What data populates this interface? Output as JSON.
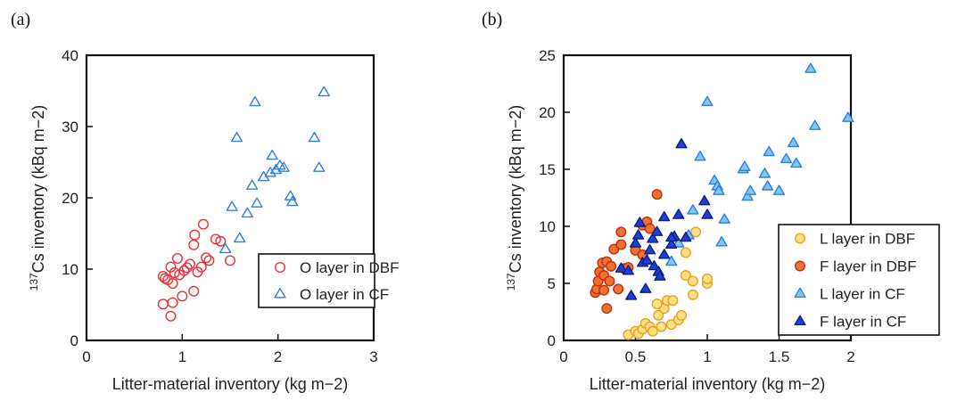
{
  "chart_data": [
    {
      "panel": "(a)",
      "type": "scatter",
      "title": "",
      "xlabel": "Litter-material inventory (kg m−2)",
      "ylabel_sup": "137",
      "ylabel": "Cs inventory (kBq m−2)",
      "xlim": [
        0,
        3
      ],
      "ylim": [
        0,
        40
      ],
      "xticks": [
        0,
        1,
        2,
        3
      ],
      "yticks": [
        0,
        10,
        20,
        30,
        40
      ],
      "grid": false,
      "legend_position": "bottom-right",
      "series": [
        {
          "name": "O layer in DBF",
          "marker": "circle",
          "fill": "none",
          "stroke": "#e8313a",
          "points": [
            [
              0.8,
              9
            ],
            [
              0.82,
              8.7
            ],
            [
              0.85,
              8.5
            ],
            [
              0.88,
              10.3
            ],
            [
              0.9,
              8
            ],
            [
              0.92,
              9.5
            ],
            [
              0.95,
              11.5
            ],
            [
              0.97,
              9.2
            ],
            [
              1.0,
              6.2
            ],
            [
              1.02,
              9.8
            ],
            [
              1.05,
              10.2
            ],
            [
              1.08,
              10.7
            ],
            [
              1.12,
              6.9
            ],
            [
              1.12,
              13.4
            ],
            [
              1.13,
              14.8
            ],
            [
              1.16,
              9.6
            ],
            [
              1.2,
              10.3
            ],
            [
              1.22,
              16.3
            ],
            [
              1.25,
              11.6
            ],
            [
              1.28,
              11.2
            ],
            [
              1.35,
              14.2
            ],
            [
              1.4,
              13.9
            ],
            [
              1.5,
              11.2
            ],
            [
              0.8,
              5.1
            ],
            [
              0.9,
              5.3
            ],
            [
              0.88,
              3.4
            ]
          ]
        },
        {
          "name": "O layer in CF",
          "marker": "triangle",
          "fill": "none",
          "stroke": "#2f7ee0",
          "points": [
            [
              1.45,
              12.8
            ],
            [
              1.52,
              18.7
            ],
            [
              1.57,
              28.4
            ],
            [
              1.6,
              14.3
            ],
            [
              1.68,
              17.8
            ],
            [
              1.73,
              21.7
            ],
            [
              1.76,
              33.4
            ],
            [
              1.78,
              19.2
            ],
            [
              1.85,
              22.9
            ],
            [
              1.92,
              23.5
            ],
            [
              1.94,
              25.9
            ],
            [
              1.98,
              23.9
            ],
            [
              2.02,
              24.5
            ],
            [
              2.06,
              24.2
            ],
            [
              2.13,
              20.2
            ],
            [
              2.15,
              19.4
            ],
            [
              2.38,
              28.4
            ],
            [
              2.43,
              24.2
            ],
            [
              2.48,
              34.8
            ]
          ]
        }
      ]
    },
    {
      "panel": "(b)",
      "type": "scatter",
      "title": "",
      "xlabel": "Litter-material inventory (kg m−2)",
      "ylabel_sup": "137",
      "ylabel": "Cs inventory (kBq m−2)",
      "xlim": [
        0,
        2
      ],
      "ylim": [
        0,
        25
      ],
      "xticks": [
        0,
        0.5,
        1,
        1.5,
        2
      ],
      "xtick_labels": [
        "0",
        "0.5",
        "1",
        "1.5",
        "2"
      ],
      "yticks": [
        0,
        5,
        10,
        15,
        20,
        25
      ],
      "grid": false,
      "legend_position": "bottom-right",
      "series": [
        {
          "name": "L layer in DBF",
          "marker": "circle",
          "fill": "#ffe083",
          "stroke": "#e8a020",
          "points": [
            [
              0.45,
              0.5
            ],
            [
              0.5,
              0.8
            ],
            [
              0.52,
              0.6
            ],
            [
              0.55,
              1.0
            ],
            [
              0.57,
              1.5
            ],
            [
              0.6,
              1.2
            ],
            [
              0.62,
              0.8
            ],
            [
              0.66,
              2.2
            ],
            [
              0.68,
              1.2
            ],
            [
              0.7,
              2.8
            ],
            [
              0.72,
              3.5
            ],
            [
              0.75,
              1.4
            ],
            [
              0.76,
              3.5
            ],
            [
              0.8,
              1.8
            ],
            [
              0.82,
              2.2
            ],
            [
              0.85,
              5.7
            ],
            [
              0.9,
              4.0
            ],
            [
              0.9,
              5.2
            ],
            [
              0.92,
              9.5
            ],
            [
              1.0,
              5.0
            ],
            [
              1.0,
              5.4
            ],
            [
              0.85,
              7.7
            ],
            [
              0.65,
              3.2
            ]
          ]
        },
        {
          "name": "F layer in DBF",
          "marker": "circle",
          "fill": "#f07030",
          "stroke": "#c03010",
          "points": [
            [
              0.22,
              4.2
            ],
            [
              0.23,
              4.5
            ],
            [
              0.24,
              5.2
            ],
            [
              0.25,
              6.0
            ],
            [
              0.27,
              6.8
            ],
            [
              0.28,
              5.7
            ],
            [
              0.28,
              4.4
            ],
            [
              0.3,
              6.9
            ],
            [
              0.3,
              2.8
            ],
            [
              0.32,
              5.2
            ],
            [
              0.33,
              6.5
            ],
            [
              0.35,
              8.0
            ],
            [
              0.38,
              4.5
            ],
            [
              0.4,
              8.4
            ],
            [
              0.4,
              9.5
            ],
            [
              0.42,
              6.3
            ],
            [
              0.45,
              6.4
            ],
            [
              0.5,
              7.9
            ],
            [
              0.55,
              10.1
            ],
            [
              0.58,
              10.4
            ],
            [
              0.65,
              12.8
            ],
            [
              0.55,
              7.5
            ],
            [
              0.6,
              9.8
            ]
          ]
        },
        {
          "name": "L layer in CF",
          "marker": "triangle",
          "fill": "#7ec8f2",
          "stroke": "#2f7ee0",
          "points": [
            [
              0.75,
              6.9
            ],
            [
              0.8,
              8.5
            ],
            [
              0.87,
              9.2
            ],
            [
              0.9,
              11.4
            ],
            [
              0.95,
              16.1
            ],
            [
              1.0,
              20.9
            ],
            [
              1.05,
              14.0
            ],
            [
              1.07,
              13.5
            ],
            [
              1.08,
              13.1
            ],
            [
              1.1,
              8.6
            ],
            [
              1.12,
              10.6
            ],
            [
              1.25,
              15.0
            ],
            [
              1.26,
              15.2
            ],
            [
              1.28,
              12.6
            ],
            [
              1.3,
              13.1
            ],
            [
              1.4,
              14.6
            ],
            [
              1.42,
              13.5
            ],
            [
              1.43,
              16.5
            ],
            [
              1.5,
              13.1
            ],
            [
              1.55,
              15.9
            ],
            [
              1.6,
              17.3
            ],
            [
              1.62,
              15.5
            ],
            [
              1.72,
              23.8
            ],
            [
              1.75,
              18.8
            ],
            [
              1.98,
              19.5
            ]
          ]
        },
        {
          "name": "F layer in CF",
          "marker": "triangle",
          "fill": "#1c3fd8",
          "stroke": "#0b1f80",
          "points": [
            [
              0.4,
              6.3
            ],
            [
              0.45,
              6.1
            ],
            [
              0.47,
              3.9
            ],
            [
              0.5,
              8.5
            ],
            [
              0.52,
              9.2
            ],
            [
              0.53,
              10.3
            ],
            [
              0.55,
              6.8
            ],
            [
              0.57,
              4.5
            ],
            [
              0.58,
              7.0
            ],
            [
              0.6,
              7.9
            ],
            [
              0.62,
              8.9
            ],
            [
              0.63,
              6.5
            ],
            [
              0.65,
              9.5
            ],
            [
              0.66,
              6.0
            ],
            [
              0.67,
              5.6
            ],
            [
              0.7,
              10.8
            ],
            [
              0.7,
              7.5
            ],
            [
              0.75,
              8.4
            ],
            [
              0.77,
              9.1
            ],
            [
              0.8,
              11.0
            ],
            [
              0.82,
              17.2
            ],
            [
              0.85,
              9.0
            ],
            [
              0.98,
              12.2
            ],
            [
              1.0,
              11.0
            ],
            [
              0.75,
              9.0
            ]
          ]
        }
      ]
    }
  ]
}
